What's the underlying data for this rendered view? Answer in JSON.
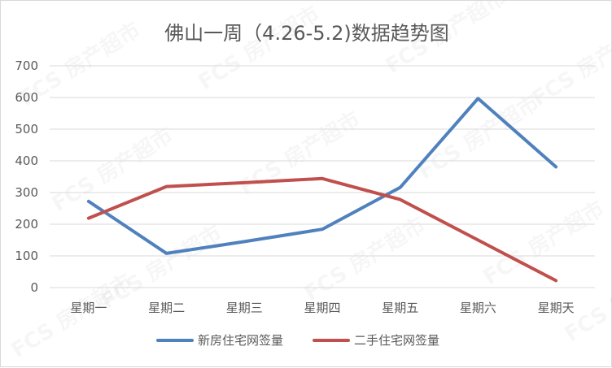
{
  "chart_data": {
    "type": "line",
    "title": "佛山一周（4.26-5.2)数据趋势图",
    "categories": [
      "星期一",
      "星期二",
      "星期三",
      "星期四",
      "星期五",
      "星期六",
      "星期天"
    ],
    "series": [
      {
        "name": "新房住宅网签量",
        "color": "#4f81bd",
        "values": [
          272,
          108,
          145,
          184,
          316,
          597,
          381
        ]
      },
      {
        "name": "二手住宅网签量",
        "color": "#c0504d",
        "values": [
          219,
          319,
          331,
          344,
          278,
          150,
          22
        ]
      }
    ],
    "yticks": [
      0,
      100,
      200,
      300,
      400,
      500,
      600,
      700
    ],
    "ylim": [
      0,
      700
    ],
    "grid": true,
    "legend_position": "bottom",
    "watermark": "FCS 房产超市"
  }
}
